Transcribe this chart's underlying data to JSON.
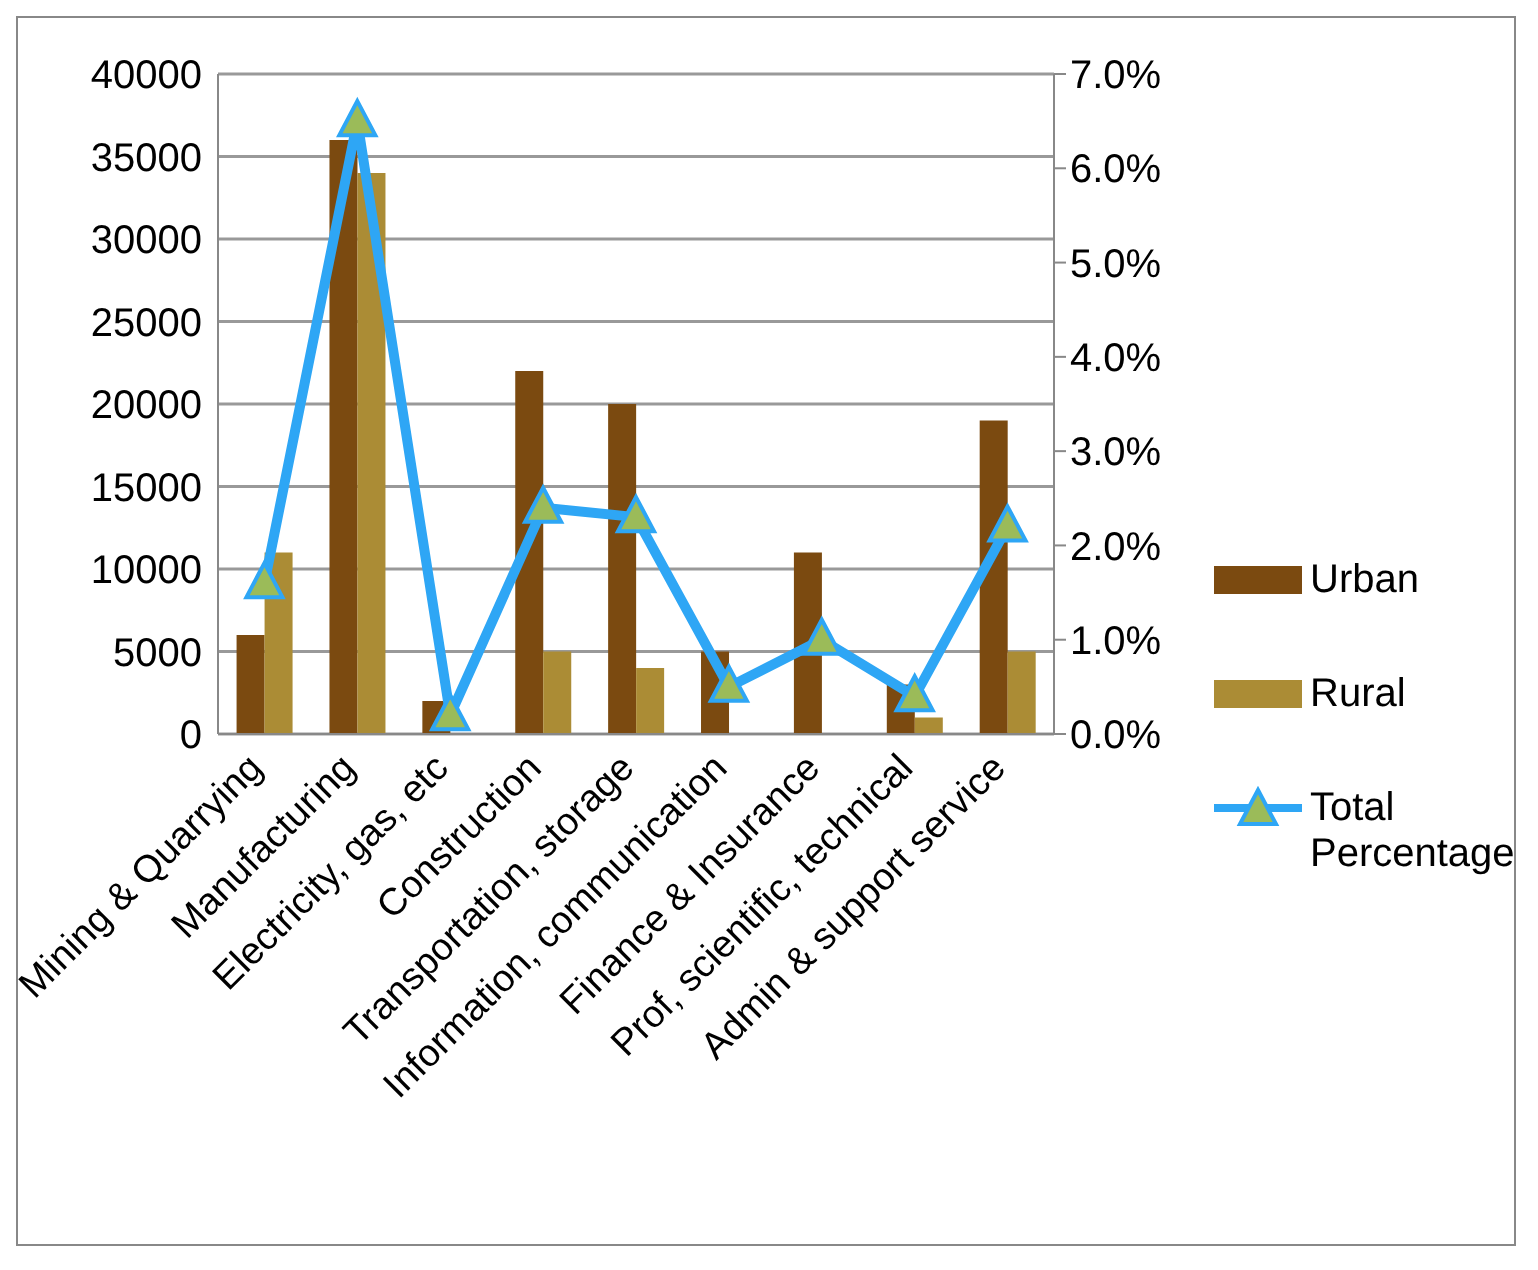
{
  "chart_data": {
    "type": "bar",
    "categories": [
      "Mining & Quarrying",
      "Manufacturing",
      "Electricity, gas, etc",
      "Construction",
      "Transportation, storage",
      "Information, communication",
      "Finance & Insurance",
      "Prof, scientific, technical",
      "Admin & support service"
    ],
    "series": [
      {
        "name": "Urban",
        "color": "#7b4a10",
        "values": [
          6000,
          36000,
          2000,
          22000,
          20000,
          5000,
          11000,
          3000,
          19000
        ]
      },
      {
        "name": "Rural",
        "color": "#ab8c35",
        "values": [
          11000,
          34000,
          0,
          5000,
          4000,
          0,
          0,
          1000,
          5000
        ]
      },
      {
        "name": "Total Percentage",
        "type": "line",
        "axis": "y2",
        "color": "#2ea6f5",
        "marker": "triangle",
        "values": [
          1.6,
          6.5,
          0.2,
          2.4,
          2.3,
          0.5,
          1.0,
          0.4,
          2.2
        ]
      }
    ],
    "ylim": [
      0,
      40000
    ],
    "yticks": [
      0,
      5000,
      10000,
      15000,
      20000,
      25000,
      30000,
      35000,
      40000
    ],
    "y2lim": [
      0,
      7
    ],
    "y2ticks": [
      {
        "value": 0,
        "label": "0.0%"
      },
      {
        "value": 1,
        "label": "1.0%"
      },
      {
        "value": 2,
        "label": "2.0%"
      },
      {
        "value": 3,
        "label": "3.0%"
      },
      {
        "value": 4,
        "label": "4.0%"
      },
      {
        "value": 5,
        "label": "5.0%"
      },
      {
        "value": 6,
        "label": "6.0%"
      },
      {
        "value": 7,
        "label": "7.0%"
      }
    ],
    "grid": "y",
    "legend": "right"
  }
}
